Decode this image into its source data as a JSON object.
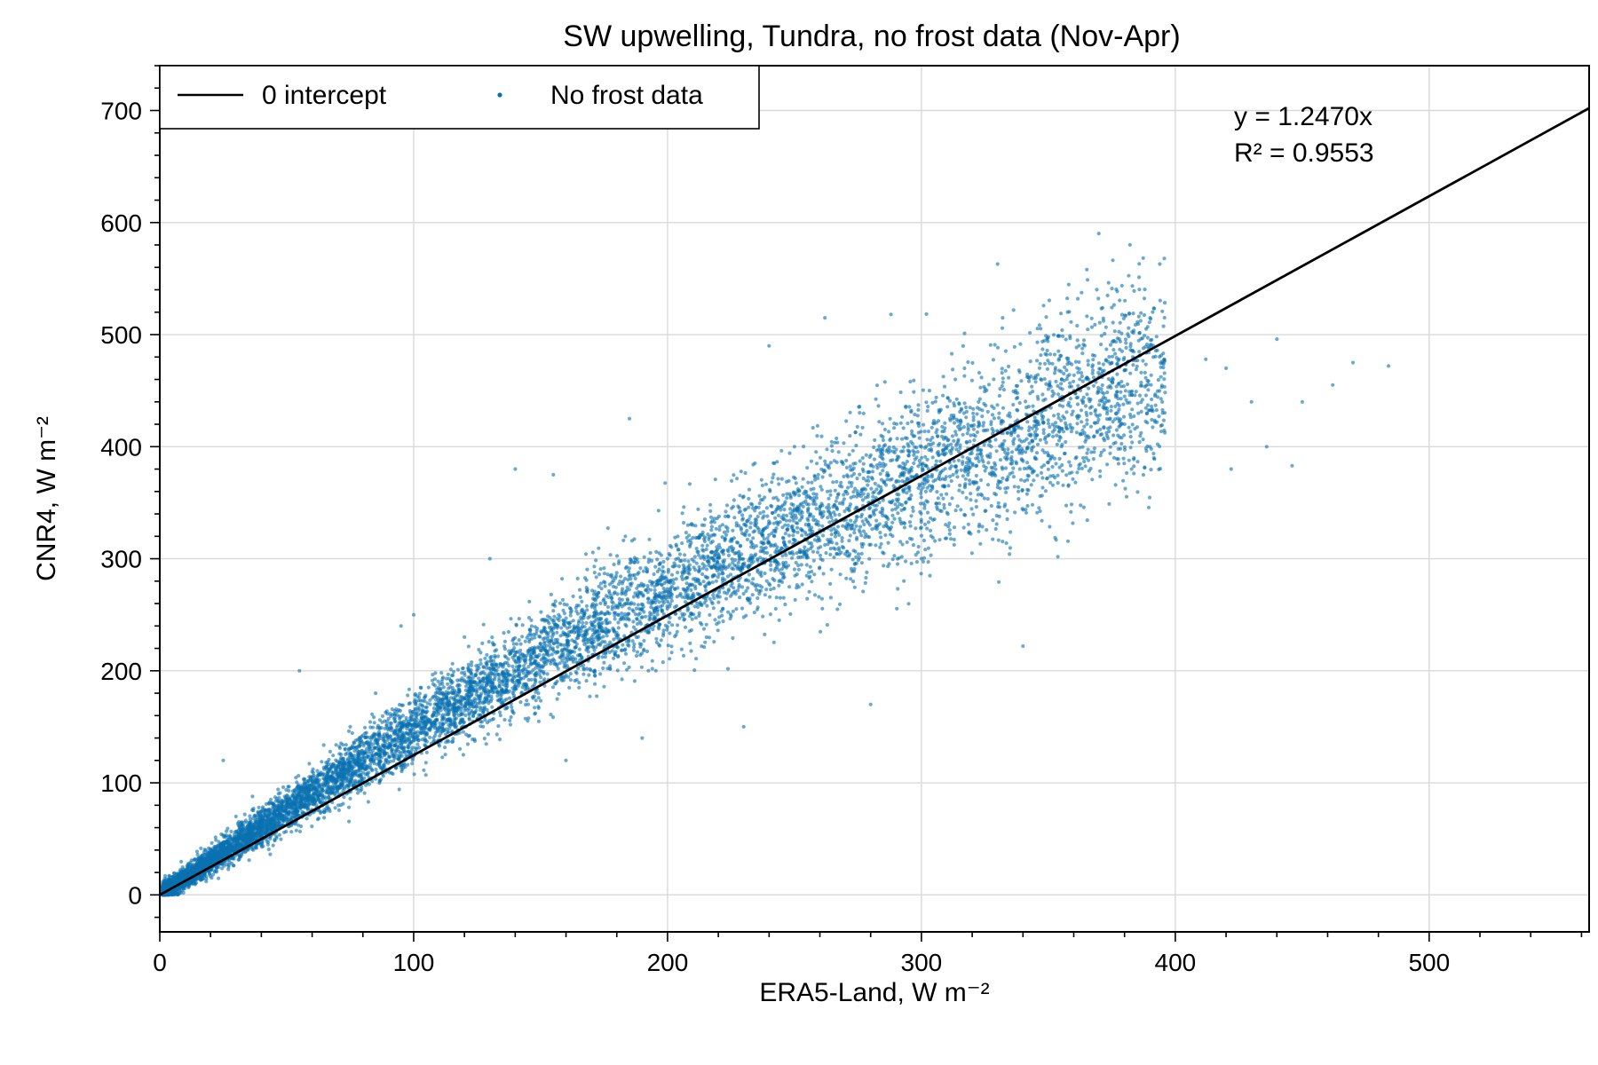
{
  "chart_data": {
    "type": "scatter",
    "title": "SW upwelling, Tundra, no frost data (Nov-Apr)",
    "xlabel": "ERA5-Land, W m⁻²",
    "ylabel": "CNR4, W m⁻²",
    "xlim": [
      0,
      563
    ],
    "ylim": [
      -33,
      740
    ],
    "x_ticks": [
      0,
      100,
      200,
      300,
      400,
      500
    ],
    "y_ticks": [
      0,
      100,
      200,
      300,
      400,
      500,
      600,
      700
    ],
    "x_minor_step": 20,
    "y_minor_step": 20,
    "grid": true,
    "legend_position": "top-left",
    "legend": [
      {
        "label": "0 intercept",
        "kind": "line",
        "color": "#000000"
      },
      {
        "label": "No frost data",
        "kind": "marker",
        "color": "#0a72b0"
      }
    ],
    "fit_line": {
      "name": "0 intercept",
      "slope": 1.247,
      "intercept": 0,
      "color": "#000000"
    },
    "annotation": {
      "equation": "y = 1.2470x",
      "r2": "R² = 0.9553"
    },
    "series": [
      {
        "name": "No frost data",
        "color": "#0a72b0",
        "point_count": 9000,
        "points": [
          [
            3,
            2
          ],
          [
            8,
            12
          ],
          [
            15,
            25
          ],
          [
            25,
            120
          ],
          [
            30,
            70
          ],
          [
            45,
            80
          ],
          [
            55,
            200
          ],
          [
            60,
            110
          ],
          [
            75,
            150
          ],
          [
            85,
            180
          ],
          [
            95,
            240
          ],
          [
            100,
            250
          ],
          [
            110,
            180
          ],
          [
            120,
            230
          ],
          [
            130,
            300
          ],
          [
            140,
            380
          ],
          [
            155,
            375
          ],
          [
            160,
            120
          ],
          [
            185,
            425
          ],
          [
            190,
            140
          ],
          [
            200,
            300
          ],
          [
            210,
            330
          ],
          [
            230,
            150
          ],
          [
            240,
            490
          ],
          [
            250,
            400
          ],
          [
            262,
            515
          ],
          [
            280,
            170
          ],
          [
            288,
            518
          ],
          [
            300,
            300
          ],
          [
            330,
            563
          ],
          [
            332,
            515
          ],
          [
            340,
            222
          ],
          [
            350,
            498
          ],
          [
            360,
            450
          ],
          [
            375,
            475
          ],
          [
            380,
            420
          ],
          [
            390,
            400
          ],
          [
            395,
            430
          ],
          [
            412,
            478
          ],
          [
            420,
            470
          ],
          [
            422,
            380
          ],
          [
            430,
            440
          ],
          [
            436,
            400
          ],
          [
            440,
            496
          ],
          [
            446,
            383
          ],
          [
            450,
            440
          ],
          [
            462,
            455
          ],
          [
            470,
            475
          ],
          [
            484,
            472
          ]
        ]
      }
    ]
  }
}
